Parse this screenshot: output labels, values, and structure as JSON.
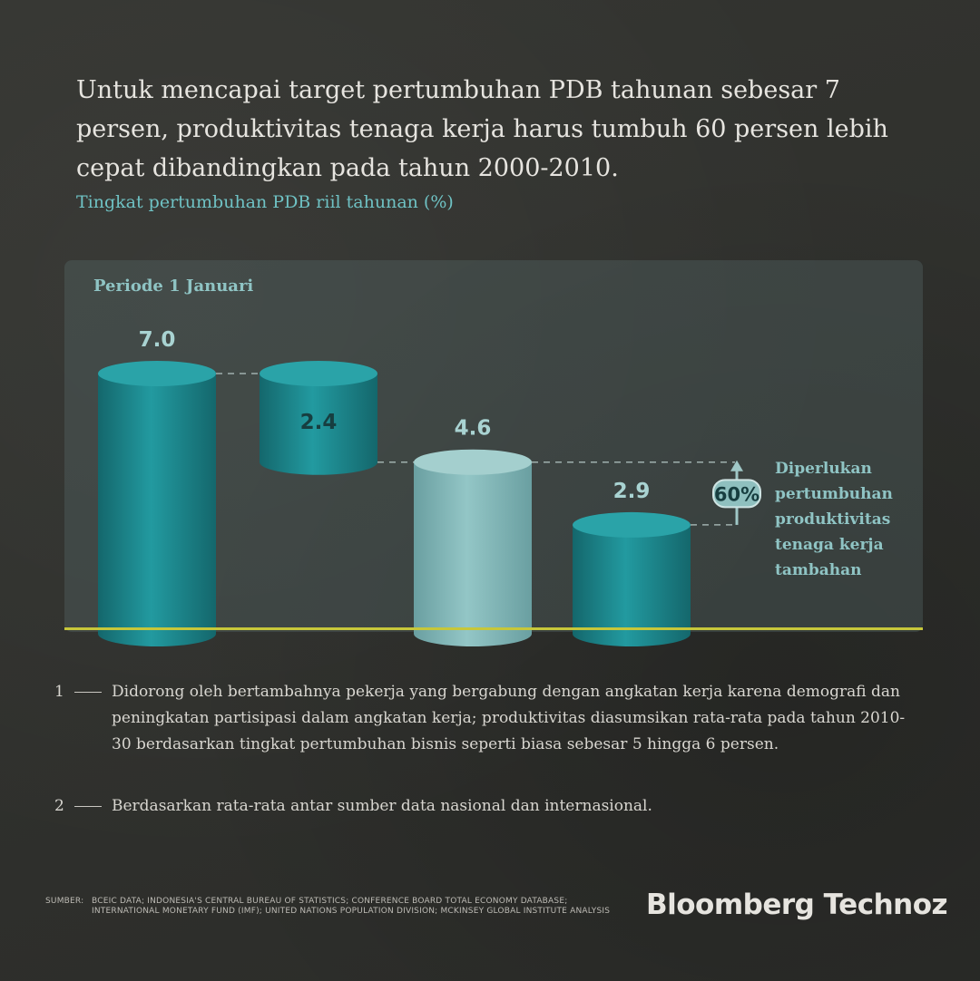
{
  "headline": "Untuk mencapai target pertumbuhan PDB tahunan sebesar 7 persen, produktivitas tenaga kerja harus tumbuh 60 persen lebih cepat dibandingkan pada tahun 2000-2010.",
  "subtitle": "Tingkat pertumbuhan PDB riil tahunan (%)",
  "colors": {
    "teal": "#1d8c91",
    "light_teal": "#84b9b9",
    "accent_text": "#6fc2c4",
    "baseline": "#c7c73a"
  },
  "chart_data": {
    "type": "bar",
    "title": "Tingkat pertumbuhan PDB riil tahunan (%)",
    "period_label": "Periode 1 Januari",
    "values": [
      7.0,
      2.4,
      4.6,
      2.9
    ],
    "value_labels": [
      "7.0",
      "2.4",
      "4.6",
      "2.9"
    ],
    "bars": [
      {
        "value": 7.0,
        "kind": "total",
        "color": "teal"
      },
      {
        "value": 2.4,
        "kind": "floating-decrease",
        "color": "teal"
      },
      {
        "value": 4.6,
        "kind": "total",
        "color": "light_teal"
      },
      {
        "value": 2.9,
        "kind": "total",
        "color": "teal"
      }
    ],
    "ylim": [
      0,
      7.0
    ],
    "grid": false,
    "annotation": {
      "badge": "60%",
      "text": [
        "Diperlukan",
        "pertumbuhan",
        "produktivitas",
        "tenaga kerja",
        "tambahan"
      ]
    }
  },
  "notes": [
    {
      "num": "1",
      "text": "Didorong oleh bertambahnya pekerja yang bergabung dengan angkatan kerja karena demografi dan peningkatan partisipasi dalam angkatan kerja; produktivitas diasumsikan rata-rata pada tahun 2010-30 berdasarkan tingkat pertumbuhan bisnis seperti biasa sebesar 5 hingga 6 persen."
    },
    {
      "num": "2",
      "text": "Berdasarkan rata-rata antar sumber data nasional dan internasional."
    }
  ],
  "source": {
    "label": "SUMBER:",
    "text": "BCEIC Data; Indonesia's Central Bureau of Statistics; Conference Board Total Economy Database; International Monetary Fund (IMF); United Nations Population Division; McKinsey Global Institute analysis"
  },
  "brand": "Bloomberg Technoz"
}
